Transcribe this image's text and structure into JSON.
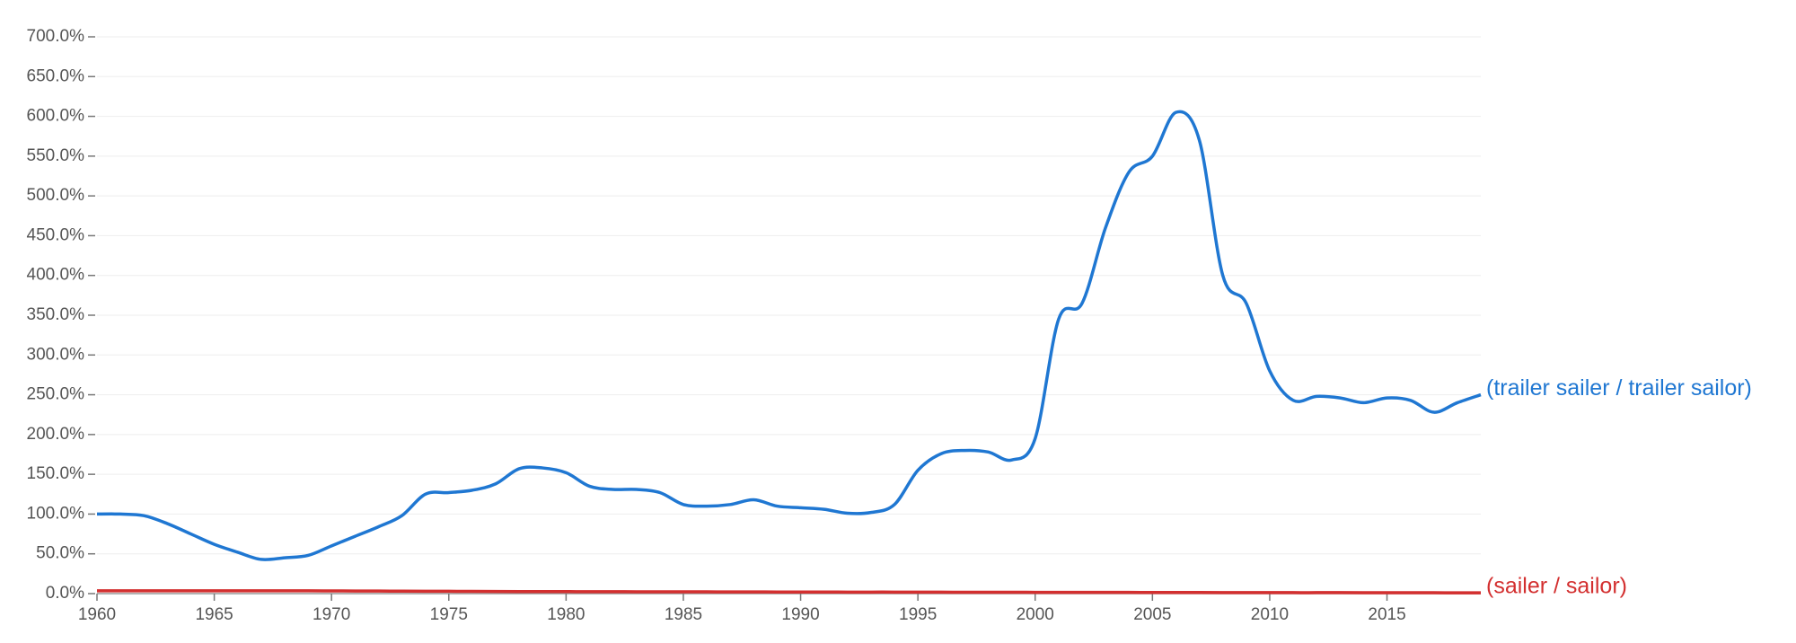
{
  "chart_data": {
    "type": "line",
    "x": [
      1960,
      1961,
      1962,
      1963,
      1964,
      1965,
      1966,
      1967,
      1968,
      1969,
      1970,
      1971,
      1972,
      1973,
      1974,
      1975,
      1976,
      1977,
      1978,
      1979,
      1980,
      1981,
      1982,
      1983,
      1984,
      1985,
      1986,
      1987,
      1988,
      1989,
      1990,
      1991,
      1992,
      1993,
      1994,
      1995,
      1996,
      1997,
      1998,
      1999,
      2000,
      2001,
      2002,
      2003,
      2004,
      2005,
      2006,
      2007,
      2008,
      2009,
      2010,
      2011,
      2012,
      2013,
      2014,
      2015,
      2016,
      2017,
      2018,
      2019
    ],
    "series": [
      {
        "name": "(trailer sailer / trailer sailor)",
        "color": "#1f77d2",
        "values": [
          100,
          100,
          98,
          88,
          75,
          62,
          52,
          43,
          45,
          48,
          60,
          72,
          84,
          98,
          125,
          127,
          130,
          138,
          157,
          158,
          152,
          135,
          131,
          131,
          127,
          112,
          110,
          112,
          118,
          110,
          108,
          106,
          101,
          102,
          112,
          155,
          176,
          180,
          178,
          168,
          195,
          345,
          365,
          460,
          530,
          550,
          605,
          570,
          400,
          365,
          280,
          243,
          248,
          246,
          240,
          246,
          243,
          228,
          240,
          250
        ]
      },
      {
        "name": "(sailer / sailor)",
        "color": "#d32f2f",
        "values": [
          3.5,
          3.5,
          3.5,
          3.5,
          3.5,
          3.5,
          3.5,
          3.5,
          3.5,
          3.5,
          3.4,
          3.3,
          3.2,
          3.1,
          3,
          2.9,
          2.8,
          2.7,
          2.6,
          2.5,
          2.5,
          2.4,
          2.4,
          2.3,
          2.3,
          2.2,
          2.2,
          2.1,
          2.1,
          2,
          2,
          2,
          1.9,
          1.9,
          1.9,
          1.8,
          1.8,
          1.7,
          1.7,
          1.7,
          1.6,
          1.6,
          1.5,
          1.5,
          1.5,
          1.4,
          1.4,
          1.4,
          1.3,
          1.3,
          1.3,
          1.2,
          1.2,
          1.2,
          1.1,
          1.1,
          1.1,
          1.1,
          1,
          1
        ]
      }
    ],
    "xlim": [
      1960,
      2019
    ],
    "xticks": [
      1960,
      1965,
      1970,
      1975,
      1980,
      1985,
      1990,
      1995,
      2000,
      2005,
      2010,
      2015
    ],
    "ylim": [
      0,
      700
    ],
    "yticks": [
      {
        "value": 0,
        "label": "0.0%"
      },
      {
        "value": 50,
        "label": "50.0%"
      },
      {
        "value": 100,
        "label": "100.0%"
      },
      {
        "value": 150,
        "label": "150.0%"
      },
      {
        "value": 200,
        "label": "200.0%"
      },
      {
        "value": 250,
        "label": "250.0%"
      },
      {
        "value": 300,
        "label": "300.0%"
      },
      {
        "value": 350,
        "label": "350.0%"
      },
      {
        "value": 400,
        "label": "400.0%"
      },
      {
        "value": 450,
        "label": "450.0%"
      },
      {
        "value": 500,
        "label": "500.0%"
      },
      {
        "value": 550,
        "label": "550.0%"
      },
      {
        "value": 600,
        "label": "600.0%"
      },
      {
        "value": 650,
        "label": "650.0%"
      },
      {
        "value": 700,
        "label": "700.0%"
      }
    ],
    "grid": true
  }
}
